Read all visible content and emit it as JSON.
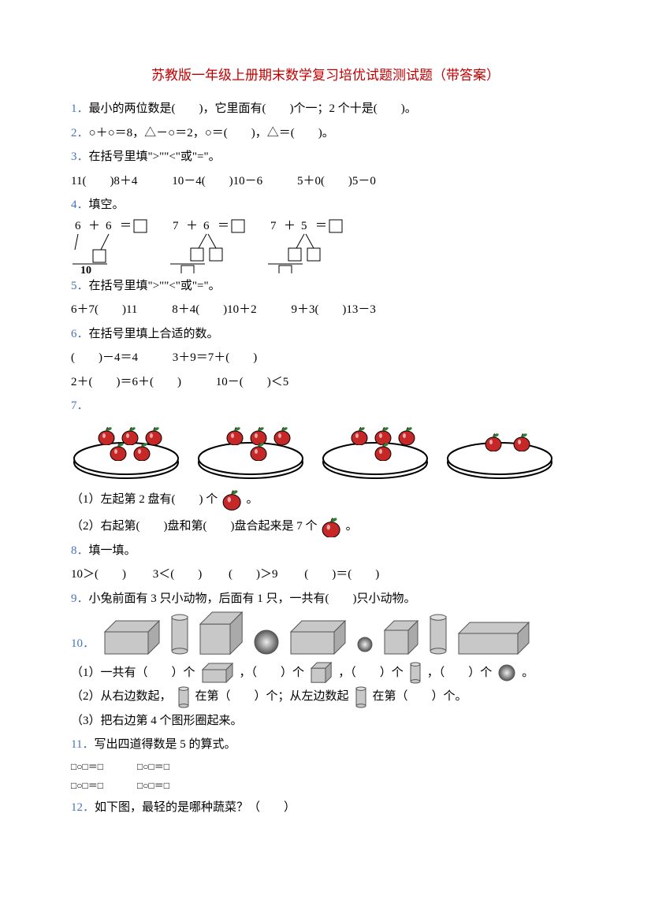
{
  "title": "苏教版一年级上册期末数学复习培优试题测试题（带答案）",
  "qnum_color": "#4472c4",
  "q1": {
    "num": "1．",
    "text": "最小的两位数是(　　)，它里面有(　　)个一；2 个十是(　　)。"
  },
  "q2": {
    "num": "2．",
    "text": "○＋○＝8，△－○＝2，○＝(　　)，△＝(　　)。"
  },
  "q3": {
    "num": "3．",
    "text": "在括号里填\">\"\"<\"或\"=\"。",
    "row": [
      "11(　　)8＋4",
      "10－4(　　)10－6",
      "5＋0(　　)5－0"
    ]
  },
  "q4": {
    "num": "4．",
    "text": "填空。",
    "boxes": [
      {
        "a": "6",
        "op1": "＋",
        "b": "6",
        "op2": "＝",
        "result_left": "10"
      },
      {
        "a": "7",
        "op1": "＋",
        "b": "6",
        "op2": "＝"
      },
      {
        "a": "7",
        "op1": "＋",
        "b": "5",
        "op2": "＝"
      }
    ]
  },
  "q5": {
    "num": "5．",
    "text": "在括号里填\">\"\"<\"或\"=\"。",
    "row": [
      "6＋7(　　)11",
      "8＋4(　　)10＋2",
      "9＋3(　　)13－3"
    ]
  },
  "q6": {
    "num": "6．",
    "text": "在括号里填上合适的数。",
    "row1": [
      "(　　)－4＝4",
      "3＋9＝7＋(　　)"
    ],
    "row2": [
      "2＋(　　)＝6＋(　　)",
      "10－(　　)＜5"
    ]
  },
  "q7": {
    "num": "7．",
    "plates": [
      5,
      4,
      4,
      2
    ],
    "p1": "（1）左起第 2 盘有(　　) 个",
    "p1_tail": "。",
    "p2a": "（2）右起第(　　)盘和第(　　)盘合起来是 7 个",
    "p2_tail": "。",
    "apple_color": "#c62828",
    "leaf_color": "#2e7d32",
    "plate_stroke": "#000"
  },
  "q8": {
    "num": "8．",
    "text": "填一填。",
    "row": [
      "10＞(　　)",
      "3＜(　　)",
      "(　　)＞9",
      "(　　)＝(　　)"
    ]
  },
  "q9": {
    "num": "9．",
    "text": "小兔前面有 3 只小动物，后面有 1 只，一共有(　　)只小动物。"
  },
  "q10": {
    "num": "10．",
    "shapes": [
      "cuboid",
      "cylinder_tall",
      "cube_big",
      "sphere",
      "cuboid",
      "sphere_small",
      "cube",
      "cylinder_tall",
      "cuboid_long"
    ],
    "p1a": "（1）一共有（　　）个",
    "p1b": "，（　　）个",
    "p1c": "，（　　）个",
    "p1d": "，（　　）个",
    "p1e": "。",
    "p2a": "（2）从右边数起，",
    "p2b": "在第（　　）个；从左边数起",
    "p2c": "在第（　　）个。",
    "p3": "（3）把右边第 4 个图形圈起来。",
    "fill": "#c8c8c8",
    "stroke": "#555",
    "sphere_fill": "#888"
  },
  "q11": {
    "num": "11．",
    "text": "写出四道得数是 5 的算式。",
    "rows": [
      [
        "□○□＝□",
        "□○□＝□"
      ],
      [
        "□○□＝□",
        "□○□＝□"
      ]
    ]
  },
  "q12": {
    "num": "12．",
    "text": "如下图，最轻的是哪种蔬菜？（　　）"
  }
}
